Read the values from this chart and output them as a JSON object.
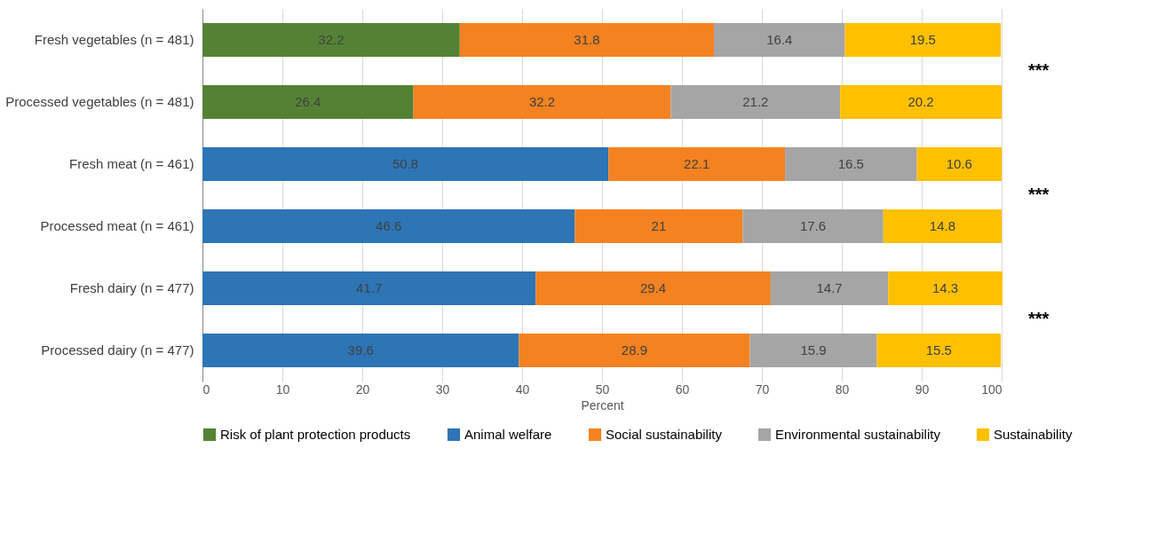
{
  "chart_data": {
    "type": "bar",
    "orientation": "horizontal",
    "stacked": true,
    "data_labels": true,
    "categories": [
      "Fresh vegetables (n = 481)",
      "Processed vegetables (n = 481)",
      "Fresh meat (n = 461)",
      "Processed meat (n = 461)",
      "Fresh dairy (n = 477)",
      "Processed dairy (n = 477)"
    ],
    "series": [
      {
        "name": "Risk of plant protection products",
        "color": "#548235",
        "values": [
          32.2,
          26.4,
          null,
          null,
          null,
          null
        ]
      },
      {
        "name": "Animal welfare",
        "color": "#2e75b6",
        "values": [
          null,
          null,
          50.8,
          46.6,
          41.7,
          39.6
        ]
      },
      {
        "name": "Social sustainability",
        "color": "#f58220",
        "values": [
          31.8,
          32.2,
          22.1,
          21,
          29.4,
          28.9
        ]
      },
      {
        "name": "Environmental sustainability",
        "color": "#a5a5a5",
        "values": [
          16.4,
          21.2,
          16.5,
          17.6,
          14.7,
          15.9
        ]
      },
      {
        "name": "Sustainability",
        "color": "#ffc000",
        "values": [
          19.5,
          20.2,
          10.6,
          14.8,
          14.3,
          15.5
        ]
      }
    ],
    "xlabel": "Percent",
    "xlim": [
      0,
      100
    ],
    "xticks": [
      0,
      10,
      20,
      30,
      40,
      50,
      60,
      70,
      80,
      90,
      100
    ],
    "grid": "x",
    "legend": "bottom",
    "annotations": [
      "***",
      "***",
      "***"
    ]
  }
}
